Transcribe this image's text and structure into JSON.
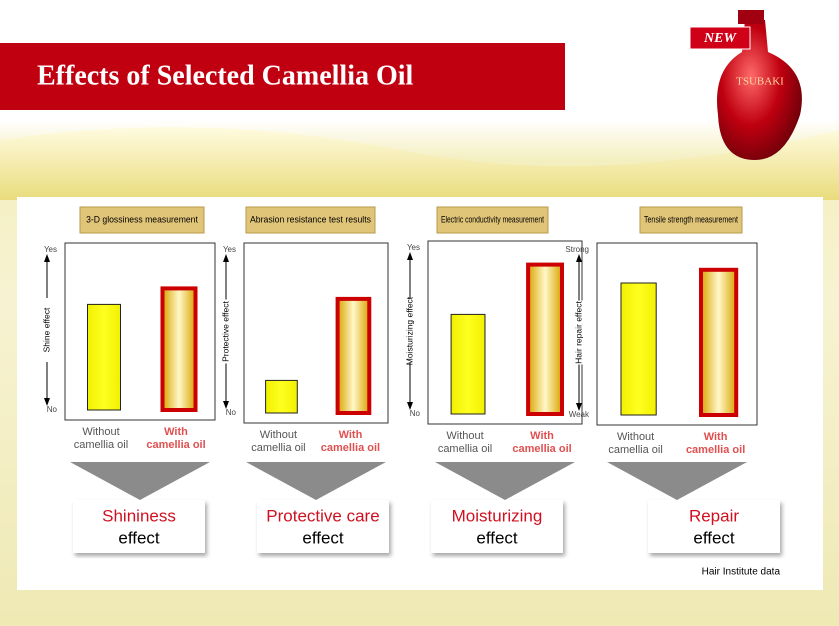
{
  "header": {
    "title": "Effects of Selected Camellia Oil",
    "badge": "NEW",
    "brand": "TSUBAKI"
  },
  "chart_data": [
    {
      "type": "bar",
      "title": "3-D glossiness measurement",
      "ylabel": "Shine effect",
      "categories": [
        "Without camellia oil",
        "With camellia oil"
      ],
      "values": [
        66,
        76
      ],
      "colors": [
        "#ffff00",
        "#cc0000"
      ],
      "ylim": [
        0,
        100
      ],
      "yticks": [
        {
          "value": 0,
          "label": "No"
        },
        {
          "value": 100,
          "label": "Yes"
        }
      ]
    },
    {
      "type": "bar",
      "title": "Abrasion resistance test results",
      "ylabel": "Protective effect",
      "categories": [
        "Without camellia oil",
        "With camellia oil"
      ],
      "values": [
        20,
        70
      ],
      "colors": [
        "#ffff00",
        "#cc0000"
      ],
      "ylim": [
        0,
        100
      ],
      "yticks": [
        {
          "value": 0,
          "label": "No"
        },
        {
          "value": 100,
          "label": "Yes"
        }
      ]
    },
    {
      "type": "bar",
      "title": "Electric conductivity measurement",
      "ylabel": "Moisturizing effect",
      "categories": [
        "Without camellia oil",
        "With camellia oil"
      ],
      "values": [
        60,
        90
      ],
      "colors": [
        "#ffff00",
        "#cc0000"
      ],
      "ylim": [
        0,
        100
      ],
      "yticks": [
        {
          "value": 0,
          "label": "No"
        },
        {
          "value": 100,
          "label": "Yes"
        }
      ]
    },
    {
      "type": "bar",
      "title": "Tensile strength measurement",
      "ylabel": "Hair repair effect",
      "categories": [
        "Without camellia oil",
        "With camellia oil"
      ],
      "values": [
        80,
        88
      ],
      "colors": [
        "#ffff00",
        "#cc0000"
      ],
      "ylim": [
        0,
        100
      ],
      "yticks": [
        {
          "value": 0,
          "label": "Weak"
        },
        {
          "value": 100,
          "label": "Strong"
        }
      ]
    }
  ],
  "results": [
    {
      "name": "Shininess",
      "word": "effect"
    },
    {
      "name": "Protective care",
      "word": "effect"
    },
    {
      "name": "Moisturizing",
      "word": "effect"
    },
    {
      "name": "Repair",
      "word": "effect"
    }
  ],
  "source": "Hair Institute data"
}
